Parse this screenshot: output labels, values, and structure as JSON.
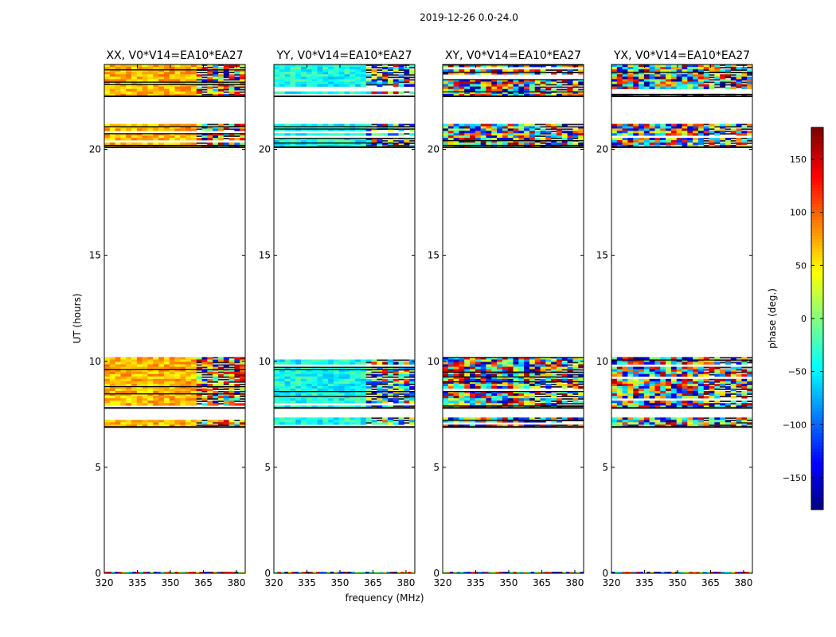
{
  "figure": {
    "suptitle": "2019-12-26 0.0-24.0",
    "xlabel": "frequency (MHz)",
    "ylabel": "UT (hours)"
  },
  "chart_data": {
    "type": "heatmap",
    "colormap": "jet",
    "x_range_mhz": [
      320,
      384
    ],
    "y_range_hours": [
      0,
      24
    ],
    "x_ticks": [
      320,
      335,
      350,
      365,
      380
    ],
    "y_ticks": [
      0,
      5,
      10,
      15,
      20
    ],
    "observed_ut_bands_hours": [
      [
        6.9,
        7.35
      ],
      [
        7.8,
        10.2
      ],
      [
        20.1,
        21.2
      ],
      [
        22.5,
        24.0
      ]
    ],
    "panels": [
      {
        "title": "XX, V0*V14=EA10*EA27",
        "dominant_phase_deg": 70,
        "pattern": "coherent"
      },
      {
        "title": "YY, V0*V14=EA10*EA27",
        "dominant_phase_deg": -40,
        "pattern": "coherent"
      },
      {
        "title": "XY, V0*V14=EA10*EA27",
        "dominant_phase_deg": null,
        "pattern": "noise"
      },
      {
        "title": "YX, V0*V14=EA10*EA27",
        "dominant_phase_deg": null,
        "pattern": "noise"
      }
    ],
    "colorbar": {
      "label": "phase (deg.)",
      "range": [
        -180,
        180
      ],
      "ticks": [
        150,
        100,
        50,
        0,
        -50,
        -100,
        -150
      ],
      "tick_labels": [
        "150",
        "100",
        "50",
        "0",
        "−50",
        "−100",
        "−150"
      ]
    }
  }
}
